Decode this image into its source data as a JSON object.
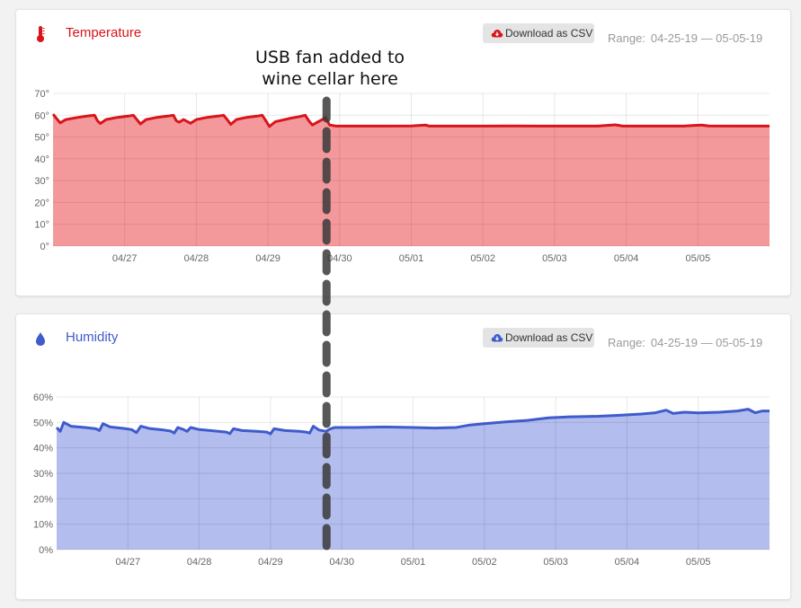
{
  "annotation": {
    "line1": "USB fan added to",
    "line2": "wine cellar here",
    "x_date": "04/29 20:00"
  },
  "cards": {
    "temperature": {
      "title": "Temperature",
      "icon": "thermometer-icon",
      "button_label": "Download as CSV",
      "button_icon": "cloud-download-icon",
      "range_label": "Range:",
      "range_value": "04-25-19 — 05-05-19",
      "accent": "#d9141b"
    },
    "humidity": {
      "title": "Humidity",
      "icon": "droplet-icon",
      "button_label": "Download as CSV",
      "button_icon": "cloud-download-icon",
      "range_label": "Range:",
      "range_value": "04-25-19 — 05-05-19",
      "accent": "#3f5bcc"
    }
  },
  "chart_data": [
    {
      "type": "area",
      "name": "temperature",
      "x_unit": "days since 04-26-19 00:00",
      "ylim": [
        0,
        70
      ],
      "yticks": [
        "0°",
        "10°",
        "20°",
        "30°",
        "40°",
        "50°",
        "60°",
        "70°"
      ],
      "xticks": [
        {
          "label": "04/27",
          "x": 1
        },
        {
          "label": "04/28",
          "x": 2
        },
        {
          "label": "04/29",
          "x": 3
        },
        {
          "label": "04/30",
          "x": 4
        },
        {
          "label": "05/01",
          "x": 5
        },
        {
          "label": "05/02",
          "x": 6
        },
        {
          "label": "05/03",
          "x": 7
        },
        {
          "label": "05/04",
          "x": 8
        },
        {
          "label": "05/05",
          "x": 9
        }
      ],
      "xrange": [
        0,
        10
      ],
      "line_color": "#d9141b",
      "fill_color": "#f4999b",
      "points": [
        [
          0.0,
          60.5
        ],
        [
          0.06,
          58.0
        ],
        [
          0.1,
          56.5
        ],
        [
          0.18,
          58.0
        ],
        [
          0.35,
          59.0
        ],
        [
          0.5,
          59.7
        ],
        [
          0.58,
          60.0
        ],
        [
          0.62,
          57.5
        ],
        [
          0.66,
          56.2
        ],
        [
          0.74,
          58.0
        ],
        [
          0.9,
          59.0
        ],
        [
          1.05,
          59.6
        ],
        [
          1.12,
          60.0
        ],
        [
          1.17,
          58.0
        ],
        [
          1.22,
          56.0
        ],
        [
          1.3,
          58.0
        ],
        [
          1.45,
          59.0
        ],
        [
          1.6,
          59.6
        ],
        [
          1.68,
          60.0
        ],
        [
          1.72,
          57.5
        ],
        [
          1.76,
          56.8
        ],
        [
          1.82,
          58.0
        ],
        [
          1.88,
          57.0
        ],
        [
          1.92,
          56.3
        ],
        [
          2.0,
          58.0
        ],
        [
          2.15,
          59.0
        ],
        [
          2.3,
          59.6
        ],
        [
          2.38,
          60.0
        ],
        [
          2.43,
          58.0
        ],
        [
          2.48,
          55.8
        ],
        [
          2.56,
          58.0
        ],
        [
          2.7,
          59.0
        ],
        [
          2.85,
          59.6
        ],
        [
          2.92,
          60.0
        ],
        [
          2.97,
          57.5
        ],
        [
          3.02,
          54.8
        ],
        [
          3.1,
          57.0
        ],
        [
          3.3,
          58.5
        ],
        [
          3.45,
          59.4
        ],
        [
          3.52,
          60.0
        ],
        [
          3.57,
          57.5
        ],
        [
          3.62,
          55.5
        ],
        [
          3.7,
          57.0
        ],
        [
          3.76,
          58.0
        ],
        [
          3.8,
          59.0
        ],
        [
          3.86,
          55.5
        ],
        [
          3.95,
          55.0
        ],
        [
          4.2,
          55.0
        ],
        [
          4.6,
          55.0
        ],
        [
          5.0,
          55.1
        ],
        [
          5.2,
          55.5
        ],
        [
          5.25,
          55.0
        ],
        [
          5.6,
          55.0
        ],
        [
          6.0,
          55.0
        ],
        [
          6.4,
          55.1
        ],
        [
          6.8,
          55.0
        ],
        [
          7.2,
          55.0
        ],
        [
          7.6,
          55.0
        ],
        [
          7.85,
          55.6
        ],
        [
          7.95,
          55.0
        ],
        [
          8.3,
          55.0
        ],
        [
          8.8,
          55.0
        ],
        [
          9.05,
          55.5
        ],
        [
          9.15,
          55.1
        ],
        [
          9.5,
          55.0
        ],
        [
          10.0,
          55.0
        ]
      ]
    },
    {
      "type": "area",
      "name": "humidity",
      "x_unit": "days since 04-26-19 00:00",
      "ylim": [
        0,
        60
      ],
      "yticks": [
        "0%",
        "10%",
        "20%",
        "30%",
        "40%",
        "50%",
        "60%"
      ],
      "xticks": [
        {
          "label": "04/27",
          "x": 1
        },
        {
          "label": "04/28",
          "x": 2
        },
        {
          "label": "04/29",
          "x": 3
        },
        {
          "label": "04/30",
          "x": 4
        },
        {
          "label": "05/01",
          "x": 5
        },
        {
          "label": "05/02",
          "x": 6
        },
        {
          "label": "05/03",
          "x": 7
        },
        {
          "label": "05/04",
          "x": 8
        },
        {
          "label": "05/05",
          "x": 9
        }
      ],
      "xrange": [
        0,
        10
      ],
      "line_color": "#3f5bcc",
      "fill_color": "#b3bdee",
      "points": [
        [
          0.0,
          48.0
        ],
        [
          0.05,
          46.5
        ],
        [
          0.1,
          50.0
        ],
        [
          0.2,
          48.5
        ],
        [
          0.4,
          48.0
        ],
        [
          0.55,
          47.5
        ],
        [
          0.6,
          46.8
        ],
        [
          0.65,
          49.5
        ],
        [
          0.75,
          48.2
        ],
        [
          0.95,
          47.6
        ],
        [
          1.05,
          47.2
        ],
        [
          1.12,
          46.0
        ],
        [
          1.18,
          48.5
        ],
        [
          1.3,
          47.6
        ],
        [
          1.5,
          47.0
        ],
        [
          1.6,
          46.6
        ],
        [
          1.65,
          45.8
        ],
        [
          1.7,
          48.0
        ],
        [
          1.78,
          47.2
        ],
        [
          1.83,
          46.5
        ],
        [
          1.88,
          48.0
        ],
        [
          2.0,
          47.2
        ],
        [
          2.2,
          46.7
        ],
        [
          2.38,
          46.2
        ],
        [
          2.43,
          45.6
        ],
        [
          2.48,
          47.5
        ],
        [
          2.6,
          46.8
        ],
        [
          2.8,
          46.5
        ],
        [
          2.95,
          46.2
        ],
        [
          3.0,
          45.5
        ],
        [
          3.05,
          47.5
        ],
        [
          3.2,
          46.8
        ],
        [
          3.4,
          46.5
        ],
        [
          3.5,
          46.2
        ],
        [
          3.55,
          45.8
        ],
        [
          3.6,
          48.5
        ],
        [
          3.68,
          47.0
        ],
        [
          3.78,
          46.5
        ],
        [
          3.84,
          47.5
        ],
        [
          3.9,
          48.0
        ],
        [
          4.2,
          48.0
        ],
        [
          4.6,
          48.2
        ],
        [
          5.0,
          48.0
        ],
        [
          5.3,
          47.8
        ],
        [
          5.6,
          48.0
        ],
        [
          5.8,
          49.0
        ],
        [
          6.0,
          49.5
        ],
        [
          6.3,
          50.2
        ],
        [
          6.6,
          50.8
        ],
        [
          6.9,
          51.8
        ],
        [
          7.2,
          52.2
        ],
        [
          7.6,
          52.4
        ],
        [
          7.9,
          52.8
        ],
        [
          8.2,
          53.3
        ],
        [
          8.4,
          53.8
        ],
        [
          8.55,
          54.8
        ],
        [
          8.65,
          53.5
        ],
        [
          8.8,
          54.0
        ],
        [
          9.0,
          53.7
        ],
        [
          9.3,
          54.0
        ],
        [
          9.55,
          54.5
        ],
        [
          9.7,
          55.2
        ],
        [
          9.8,
          53.8
        ],
        [
          9.9,
          54.5
        ],
        [
          10.0,
          54.5
        ]
      ]
    }
  ]
}
